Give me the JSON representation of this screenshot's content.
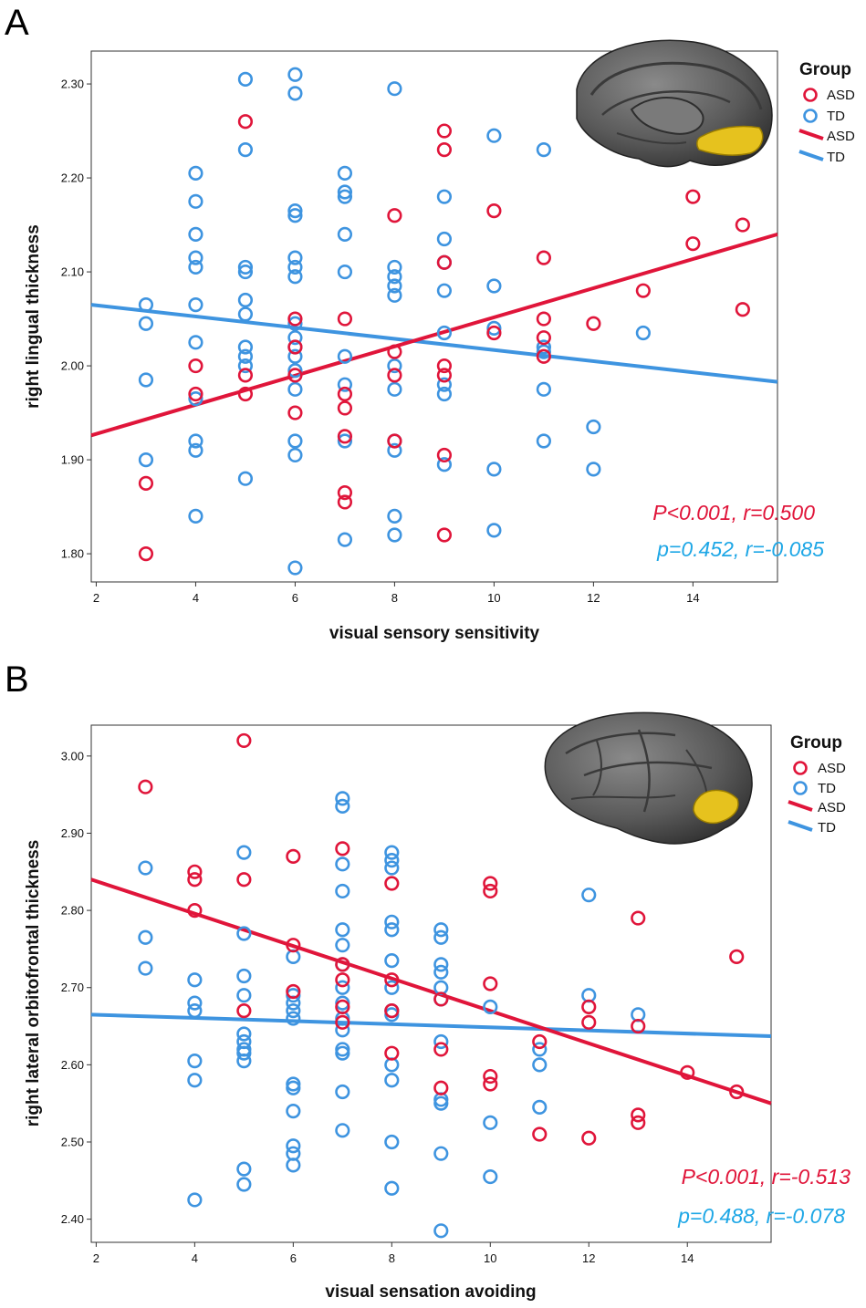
{
  "colors": {
    "asd": "#e0153a",
    "td": "#3e94e0",
    "stat_td": "#1ea7e6"
  },
  "chart_data": [
    {
      "type": "scatter",
      "panel_label": "A",
      "xlabel": "visual sensory sensitivity",
      "ylabel": "right lingual thickness",
      "xlim": [
        1.9,
        15.7
      ],
      "ylim": [
        1.77,
        2.335
      ],
      "xticks": [
        2,
        4,
        6,
        8,
        10,
        12,
        14
      ],
      "xtick_labels": [
        "2",
        "4",
        "6",
        "8",
        "10",
        "12",
        "14"
      ],
      "yticks": [
        1.8,
        1.9,
        2.0,
        2.1,
        2.2,
        2.3
      ],
      "ytick_labels": [
        "1.80",
        "1.90",
        "2.00",
        "2.10",
        "2.20",
        "2.30"
      ],
      "legend": {
        "title": "Group",
        "markers": [
          "ASD",
          "TD"
        ],
        "lines": [
          "ASD",
          "TD"
        ]
      },
      "brain_icon": "brain-medial-lingual-icon",
      "series": [
        {
          "name": "ASD",
          "color": "#e0153a",
          "fit": {
            "x": [
              1.9,
              15.7
            ],
            "y": [
              1.926,
              2.14
            ]
          },
          "points": [
            [
              3,
              1.875
            ],
            [
              3,
              1.8
            ],
            [
              4,
              2.0
            ],
            [
              4,
              1.97
            ],
            [
              5,
              2.26
            ],
            [
              5,
              1.99
            ],
            [
              5,
              1.97
            ],
            [
              6,
              2.05
            ],
            [
              6,
              2.02
            ],
            [
              6,
              1.95
            ],
            [
              6,
              1.99
            ],
            [
              7,
              2.05
            ],
            [
              7,
              1.97
            ],
            [
              7,
              1.955
            ],
            [
              7,
              1.925
            ],
            [
              7,
              1.865
            ],
            [
              7,
              1.855
            ],
            [
              8,
              2.16
            ],
            [
              8,
              2.015
            ],
            [
              8,
              1.99
            ],
            [
              8,
              1.92
            ],
            [
              9,
              2.25
            ],
            [
              9,
              2.23
            ],
            [
              9,
              2.11
            ],
            [
              9,
              2.0
            ],
            [
              9,
              1.99
            ],
            [
              9,
              1.905
            ],
            [
              9,
              1.82
            ],
            [
              10,
              2.165
            ],
            [
              10,
              2.035
            ],
            [
              11,
              2.115
            ],
            [
              11,
              2.05
            ],
            [
              11,
              2.03
            ],
            [
              11,
              2.01
            ],
            [
              12,
              2.045
            ],
            [
              13,
              2.08
            ],
            [
              14,
              2.18
            ],
            [
              14,
              2.13
            ],
            [
              15,
              2.15
            ],
            [
              15,
              2.06
            ]
          ]
        },
        {
          "name": "TD",
          "color": "#3e94e0",
          "fit": {
            "x": [
              1.9,
              15.7
            ],
            "y": [
              2.065,
              1.983
            ]
          },
          "points": [
            [
              3,
              2.065
            ],
            [
              3,
              2.045
            ],
            [
              3,
              1.985
            ],
            [
              3,
              1.9
            ],
            [
              4,
              2.205
            ],
            [
              4,
              2.175
            ],
            [
              4,
              2.14
            ],
            [
              4,
              2.115
            ],
            [
              4,
              2.105
            ],
            [
              4,
              2.065
            ],
            [
              4,
              2.025
            ],
            [
              4,
              1.965
            ],
            [
              4,
              1.92
            ],
            [
              4,
              1.91
            ],
            [
              4,
              1.84
            ],
            [
              5,
              2.305
            ],
            [
              5,
              2.23
            ],
            [
              5,
              2.105
            ],
            [
              5,
              2.1
            ],
            [
              5,
              2.07
            ],
            [
              5,
              2.055
            ],
            [
              5,
              2.02
            ],
            [
              5,
              2.01
            ],
            [
              5,
              2.0
            ],
            [
              5,
              1.88
            ],
            [
              6,
              2.31
            ],
            [
              6,
              2.29
            ],
            [
              6,
              2.165
            ],
            [
              6,
              2.16
            ],
            [
              6,
              2.115
            ],
            [
              6,
              2.105
            ],
            [
              6,
              2.095
            ],
            [
              6,
              2.045
            ],
            [
              6,
              2.03
            ],
            [
              6,
              2.02
            ],
            [
              6,
              2.01
            ],
            [
              6,
              1.995
            ],
            [
              6,
              1.975
            ],
            [
              6,
              1.92
            ],
            [
              6,
              1.905
            ],
            [
              6,
              1.785
            ],
            [
              7,
              2.205
            ],
            [
              7,
              2.185
            ],
            [
              7,
              2.18
            ],
            [
              7,
              2.14
            ],
            [
              7,
              2.1
            ],
            [
              7,
              2.01
            ],
            [
              7,
              1.98
            ],
            [
              7,
              1.92
            ],
            [
              7,
              1.815
            ],
            [
              8,
              2.295
            ],
            [
              8,
              2.105
            ],
            [
              8,
              2.095
            ],
            [
              8,
              2.085
            ],
            [
              8,
              2.075
            ],
            [
              8,
              2.0
            ],
            [
              8,
              1.975
            ],
            [
              8,
              1.92
            ],
            [
              8,
              1.91
            ],
            [
              8,
              1.84
            ],
            [
              8,
              1.82
            ],
            [
              9,
              2.18
            ],
            [
              9,
              2.135
            ],
            [
              9,
              2.11
            ],
            [
              9,
              2.08
            ],
            [
              9,
              2.035
            ],
            [
              9,
              1.98
            ],
            [
              9,
              1.97
            ],
            [
              9,
              1.895
            ],
            [
              10,
              2.245
            ],
            [
              10,
              2.085
            ],
            [
              10,
              2.04
            ],
            [
              10,
              1.89
            ],
            [
              10,
              1.825
            ],
            [
              11,
              2.23
            ],
            [
              11,
              2.02
            ],
            [
              11,
              2.015
            ],
            [
              11,
              1.975
            ],
            [
              11,
              1.92
            ],
            [
              12,
              1.935
            ],
            [
              12,
              1.89
            ],
            [
              13,
              2.035
            ]
          ]
        }
      ],
      "annotations": [
        {
          "text": "P<0.001, r=0.500",
          "color": "#e0153a"
        },
        {
          "text": "p=0.452, r=-0.085",
          "color": "#1ea7e6"
        }
      ]
    },
    {
      "type": "scatter",
      "panel_label": "B",
      "xlabel": "visual sensation avoiding",
      "ylabel": "right lateral orbitofrontal thickness",
      "xlim": [
        1.9,
        15.7
      ],
      "ylim": [
        2.37,
        3.04
      ],
      "xticks": [
        2,
        4,
        6,
        8,
        10,
        12,
        14
      ],
      "xtick_labels": [
        "2",
        "4",
        "6",
        "8",
        "10",
        "12",
        "14"
      ],
      "yticks": [
        2.4,
        2.5,
        2.6,
        2.7,
        2.8,
        2.9,
        3.0
      ],
      "ytick_labels": [
        "2.40",
        "2.50",
        "2.60",
        "2.70",
        "2.80",
        "2.90",
        "3.00"
      ],
      "legend": {
        "title": "Group",
        "markers": [
          "ASD",
          "TD"
        ],
        "lines": [
          "ASD",
          "TD"
        ]
      },
      "brain_icon": "brain-lateral-orbitofrontal-icon",
      "series": [
        {
          "name": "ASD",
          "color": "#e0153a",
          "fit": {
            "x": [
              1.9,
              15.7
            ],
            "y": [
              2.84,
              2.55
            ]
          },
          "points": [
            [
              3,
              2.96
            ],
            [
              4,
              2.85
            ],
            [
              4,
              2.84
            ],
            [
              4,
              2.8
            ],
            [
              5,
              3.02
            ],
            [
              5,
              2.84
            ],
            [
              5,
              2.67
            ],
            [
              6,
              2.87
            ],
            [
              6,
              2.755
            ],
            [
              6,
              2.695
            ],
            [
              7,
              2.88
            ],
            [
              7,
              2.73
            ],
            [
              7,
              2.71
            ],
            [
              7,
              2.675
            ],
            [
              7,
              2.655
            ],
            [
              8,
              2.835
            ],
            [
              8,
              2.71
            ],
            [
              8,
              2.67
            ],
            [
              8,
              2.615
            ],
            [
              9,
              2.685
            ],
            [
              9,
              2.62
            ],
            [
              9,
              2.57
            ],
            [
              10,
              2.835
            ],
            [
              10,
              2.825
            ],
            [
              10,
              2.705
            ],
            [
              10,
              2.585
            ],
            [
              10,
              2.575
            ],
            [
              11,
              2.63
            ],
            [
              11,
              2.51
            ],
            [
              12,
              2.675
            ],
            [
              12,
              2.655
            ],
            [
              12,
              2.505
            ],
            [
              13,
              2.79
            ],
            [
              13,
              2.65
            ],
            [
              13,
              2.535
            ],
            [
              13,
              2.525
            ],
            [
              14,
              2.59
            ],
            [
              15,
              2.74
            ],
            [
              15,
              2.565
            ]
          ]
        },
        {
          "name": "TD",
          "color": "#3e94e0",
          "fit": {
            "x": [
              1.9,
              15.7
            ],
            "y": [
              2.665,
              2.637
            ]
          },
          "points": [
            [
              3,
              2.855
            ],
            [
              3,
              2.765
            ],
            [
              3,
              2.725
            ],
            [
              4,
              2.71
            ],
            [
              4,
              2.68
            ],
            [
              4,
              2.67
            ],
            [
              4,
              2.605
            ],
            [
              4,
              2.58
            ],
            [
              4,
              2.425
            ],
            [
              5,
              2.875
            ],
            [
              5,
              2.77
            ],
            [
              5,
              2.715
            ],
            [
              5,
              2.69
            ],
            [
              5,
              2.64
            ],
            [
              5,
              2.63
            ],
            [
              5,
              2.62
            ],
            [
              5,
              2.615
            ],
            [
              5,
              2.605
            ],
            [
              5,
              2.465
            ],
            [
              5,
              2.445
            ],
            [
              6,
              2.74
            ],
            [
              6,
              2.69
            ],
            [
              6,
              2.68
            ],
            [
              6,
              2.67
            ],
            [
              6,
              2.66
            ],
            [
              6,
              2.575
            ],
            [
              6,
              2.57
            ],
            [
              6,
              2.54
            ],
            [
              6,
              2.495
            ],
            [
              6,
              2.485
            ],
            [
              6,
              2.47
            ],
            [
              7,
              2.945
            ],
            [
              7,
              2.935
            ],
            [
              7,
              2.86
            ],
            [
              7,
              2.825
            ],
            [
              7,
              2.775
            ],
            [
              7,
              2.755
            ],
            [
              7,
              2.73
            ],
            [
              7,
              2.7
            ],
            [
              7,
              2.68
            ],
            [
              7,
              2.66
            ],
            [
              7,
              2.645
            ],
            [
              7,
              2.62
            ],
            [
              7,
              2.615
            ],
            [
              7,
              2.565
            ],
            [
              7,
              2.515
            ],
            [
              8,
              2.875
            ],
            [
              8,
              2.865
            ],
            [
              8,
              2.855
            ],
            [
              8,
              2.785
            ],
            [
              8,
              2.775
            ],
            [
              8,
              2.735
            ],
            [
              8,
              2.7
            ],
            [
              8,
              2.67
            ],
            [
              8,
              2.665
            ],
            [
              8,
              2.6
            ],
            [
              8,
              2.58
            ],
            [
              8,
              2.5
            ],
            [
              8,
              2.44
            ],
            [
              9,
              2.775
            ],
            [
              9,
              2.765
            ],
            [
              9,
              2.73
            ],
            [
              9,
              2.72
            ],
            [
              9,
              2.7
            ],
            [
              9,
              2.685
            ],
            [
              9,
              2.63
            ],
            [
              9,
              2.555
            ],
            [
              9,
              2.55
            ],
            [
              9,
              2.485
            ],
            [
              9,
              2.385
            ],
            [
              10,
              2.675
            ],
            [
              10,
              2.525
            ],
            [
              10,
              2.455
            ],
            [
              11,
              2.62
            ],
            [
              11,
              2.6
            ],
            [
              11,
              2.545
            ],
            [
              12,
              2.82
            ],
            [
              12,
              2.69
            ],
            [
              13,
              2.665
            ]
          ]
        }
      ],
      "annotations": [
        {
          "text": "P<0.001, r=-0.513",
          "color": "#e0153a"
        },
        {
          "text": "p=0.488, r=-0.078",
          "color": "#1ea7e6"
        }
      ]
    }
  ]
}
